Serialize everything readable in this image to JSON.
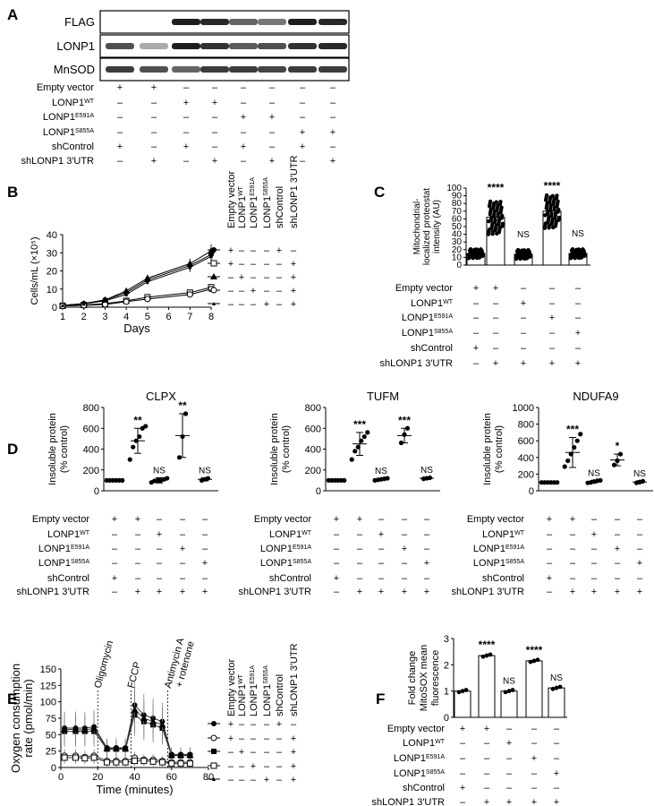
{
  "panels": [
    "A",
    "B",
    "C",
    "D",
    "E",
    "F"
  ],
  "conditions_short": [
    "Empty vector",
    "LONP1",
    "LONP1",
    "LONP1",
    "shControl",
    "shLONP1 3′UTR"
  ],
  "sup_wt": "WT",
  "sup_e591a": "E591A",
  "sup_s855a": "S855A",
  "panelA": {
    "blots": [
      "FLAG",
      "LONP1",
      "MnSOD"
    ],
    "row_labels": [
      "Empty vector",
      "LONP1",
      "LONP1",
      "LONP1",
      "shControl",
      "shLONP1 3′UTR"
    ],
    "row_sups": [
      "",
      "WT",
      "E591A",
      "S855A",
      "",
      ""
    ],
    "matrix": [
      [
        "+",
        "+",
        "–",
        "–",
        "–",
        "–",
        "–",
        "–"
      ],
      [
        "–",
        "–",
        "+",
        "+",
        "–",
        "–",
        "–",
        "–"
      ],
      [
        "–",
        "–",
        "–",
        "–",
        "+",
        "+",
        "–",
        "–"
      ],
      [
        "–",
        "–",
        "–",
        "–",
        "–",
        "–",
        "+",
        "+"
      ],
      [
        "+",
        "–",
        "+",
        "–",
        "+",
        "–",
        "+",
        "–"
      ],
      [
        "–",
        "+",
        "–",
        "+",
        "–",
        "+",
        "–",
        "+"
      ]
    ]
  },
  "panelB": {
    "legend_rows": [
      [
        "+",
        "–",
        "–",
        "–",
        "+",
        "–"
      ],
      [
        "+",
        "–",
        "–",
        "–",
        "–",
        "+"
      ],
      [
        "–",
        "+",
        "–",
        "–",
        "–",
        "+"
      ],
      [
        "–",
        "–",
        "+",
        "–",
        "–",
        "+"
      ],
      [
        "–",
        "–",
        "–",
        "+",
        "–",
        "+"
      ]
    ]
  },
  "panelC": {
    "matrix": [
      [
        "+",
        "+",
        "–",
        "–",
        "–"
      ],
      [
        "–",
        "–",
        "+",
        "–",
        "–"
      ],
      [
        "–",
        "–",
        "–",
        "+",
        "–"
      ],
      [
        "–",
        "–",
        "–",
        "–",
        "+"
      ],
      [
        "+",
        "–",
        "–",
        "–",
        "–"
      ],
      [
        "–",
        "+",
        "+",
        "+",
        "+"
      ]
    ]
  },
  "panelD_matrix": [
    [
      "+",
      "+",
      "–",
      "–",
      "–"
    ],
    [
      "–",
      "–",
      "+",
      "–",
      "–"
    ],
    [
      "–",
      "–",
      "–",
      "+",
      "–"
    ],
    [
      "–",
      "–",
      "–",
      "–",
      "+"
    ],
    [
      "+",
      "–",
      "–",
      "–",
      "–"
    ],
    [
      "–",
      "+",
      "+",
      "+",
      "+"
    ]
  ],
  "panelE": {
    "annotations": [
      "Oligomycin",
      "FCCP",
      "Antimycin A",
      "+ rotenone"
    ],
    "legend_rows": [
      [
        "+",
        "–",
        "–",
        "–",
        "+",
        "–"
      ],
      [
        "+",
        "–",
        "–",
        "–",
        "–",
        "+"
      ],
      [
        "–",
        "+",
        "–",
        "–",
        "–",
        "+"
      ],
      [
        "–",
        "–",
        "+",
        "–",
        "–",
        "+"
      ],
      [
        "–",
        "–",
        "–",
        "+",
        "–",
        "+"
      ]
    ]
  },
  "chart_data": [
    {
      "panel": "B",
      "type": "line",
      "xlabel": "Days",
      "ylabel": "Cells/mL (×10⁵)",
      "x": [
        1,
        2,
        3,
        4,
        5,
        7,
        8
      ],
      "xticks": [
        1,
        2,
        3,
        4,
        5,
        6,
        7,
        8
      ],
      "ylim": [
        0,
        40
      ],
      "yticks": [
        0,
        10,
        20,
        30,
        40
      ],
      "series": [
        {
          "marker": "filled-circle",
          "values": [
            1,
            2,
            4,
            8,
            15,
            23,
            29
          ]
        },
        {
          "marker": "open-square",
          "values": [
            0.8,
            1.2,
            2,
            3.5,
            5.5,
            8,
            11
          ]
        },
        {
          "marker": "filled-triangle",
          "values": [
            1,
            2,
            4,
            9,
            16,
            24,
            31
          ]
        },
        {
          "marker": "open-circle",
          "values": [
            0.7,
            1,
            1.5,
            3,
            4.5,
            7,
            10
          ]
        },
        {
          "marker": "small-triangle",
          "values": [
            1,
            1.8,
            3.5,
            7,
            14,
            22,
            28
          ]
        }
      ]
    },
    {
      "panel": "C",
      "type": "bar",
      "ylabel": "Mitochondrial-localized proteostat intensity (AU)",
      "ylim": [
        0,
        100
      ],
      "yticks": [
        0,
        10,
        20,
        30,
        40,
        50,
        60,
        70,
        80,
        90,
        100
      ],
      "values": [
        15,
        62,
        14,
        70,
        15
      ],
      "annotations": [
        "",
        "****",
        "NS",
        "****",
        "NS"
      ]
    },
    {
      "panel": "D",
      "type": "scatter",
      "title": "CLPX",
      "ylabel": "Insoluble protein (% control)",
      "ylim": [
        0,
        800
      ],
      "yticks": [
        0,
        200,
        400,
        600,
        800
      ],
      "means": [
        100,
        480,
        100,
        530,
        110
      ],
      "sd": [
        0,
        120,
        25,
        210,
        15
      ],
      "points": [
        [
          100,
          100,
          100,
          100,
          100,
          100
        ],
        [
          300,
          420,
          480,
          520,
          600,
          620
        ],
        [
          80,
          95,
          100,
          100,
          110,
          120
        ],
        [
          320,
          520,
          740
        ],
        [
          100,
          110,
          120
        ]
      ],
      "annotations": [
        "",
        "**",
        "NS",
        "**",
        "NS"
      ]
    },
    {
      "panel": "D",
      "type": "scatter",
      "title": "TUFM",
      "ylabel": "Insoluble protein (% control)",
      "ylim": [
        0,
        800
      ],
      "yticks": [
        0,
        200,
        400,
        600,
        800
      ],
      "means": [
        100,
        450,
        110,
        530,
        120
      ],
      "sd": [
        0,
        110,
        10,
        70,
        10
      ],
      "points": [
        [
          100,
          100,
          100,
          100,
          100,
          100
        ],
        [
          300,
          380,
          420,
          480,
          520,
          560
        ],
        [
          100,
          105,
          110,
          115,
          120
        ],
        [
          460,
          540,
          600
        ],
        [
          115,
          120,
          125
        ]
      ],
      "annotations": [
        "",
        "***",
        "NS",
        "***",
        "NS"
      ]
    },
    {
      "panel": "D",
      "type": "scatter",
      "title": "NDUFA9",
      "ylabel": "Insoluble protein (% control)",
      "ylim": [
        0,
        1000
      ],
      "yticks": [
        0,
        200,
        400,
        600,
        800,
        1000
      ],
      "means": [
        100,
        460,
        110,
        370,
        105
      ],
      "sd": [
        0,
        180,
        15,
        70,
        15
      ],
      "points": [
        [
          100,
          100,
          100,
          100,
          100,
          100
        ],
        [
          290,
          360,
          440,
          520,
          600,
          680
        ],
        [
          95,
          100,
          110,
          120,
          125
        ],
        [
          310,
          360,
          440
        ],
        [
          95,
          105,
          115
        ]
      ],
      "annotations": [
        "",
        "***",
        "NS",
        "*",
        "NS"
      ]
    },
    {
      "panel": "E",
      "type": "line",
      "xlabel": "Time (minutes)",
      "ylabel": "Oxygen consumption rate (pmol/min)",
      "xlim": [
        0,
        80
      ],
      "xticks": [
        0,
        20,
        40,
        60,
        80
      ],
      "ylim": [
        0,
        150
      ],
      "yticks": [
        0,
        25,
        50,
        75,
        100,
        125,
        150
      ],
      "x": [
        2,
        8,
        13,
        18,
        25,
        30,
        35,
        40,
        45,
        50,
        55,
        60,
        65,
        70
      ],
      "series": [
        {
          "marker": "filled-circle",
          "values": [
            60,
            60,
            60,
            62,
            30,
            30,
            30,
            95,
            80,
            75,
            70,
            20,
            20,
            20
          ]
        },
        {
          "marker": "open-circle",
          "values": [
            18,
            18,
            16,
            18,
            10,
            10,
            10,
            15,
            12,
            12,
            10,
            8,
            8,
            8
          ]
        },
        {
          "marker": "filled-square",
          "values": [
            55,
            55,
            55,
            55,
            28,
            28,
            28,
            80,
            70,
            65,
            60,
            18,
            18,
            18
          ]
        },
        {
          "marker": "open-square",
          "values": [
            15,
            15,
            14,
            15,
            8,
            8,
            8,
            10,
            10,
            9,
            8,
            6,
            6,
            6
          ]
        },
        {
          "marker": "triangle",
          "values": [
            58,
            58,
            57,
            60,
            29,
            29,
            29,
            88,
            75,
            70,
            65,
            19,
            19,
            19
          ]
        }
      ]
    },
    {
      "panel": "F",
      "type": "bar",
      "ylabel": "Fold change MitoSOX mean fluorescence",
      "ylim": [
        0,
        3
      ],
      "yticks": [
        0,
        1,
        2,
        3
      ],
      "values": [
        1,
        2.35,
        1,
        2.15,
        1.12
      ],
      "annotations": [
        "",
        "****",
        "NS",
        "****",
        "NS"
      ]
    }
  ]
}
